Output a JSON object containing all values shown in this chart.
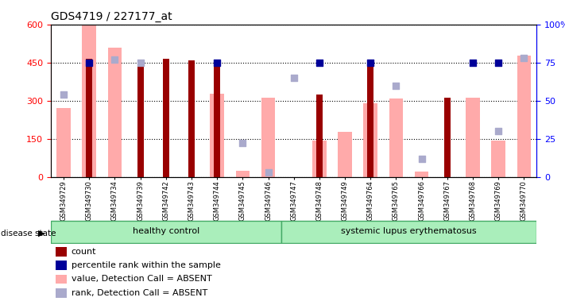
{
  "title": "GDS4719 / 227177_at",
  "samples": [
    "GSM349729",
    "GSM349730",
    "GSM349734",
    "GSM349739",
    "GSM349742",
    "GSM349743",
    "GSM349744",
    "GSM349745",
    "GSM349746",
    "GSM349747",
    "GSM349748",
    "GSM349749",
    "GSM349764",
    "GSM349765",
    "GSM349766",
    "GSM349767",
    "GSM349768",
    "GSM349769",
    "GSM349770"
  ],
  "count": [
    null,
    465,
    null,
    462,
    465,
    460,
    448,
    null,
    null,
    null,
    323,
    null,
    447,
    null,
    null,
    312,
    null,
    null,
    null
  ],
  "percentile_rank": [
    null,
    75,
    null,
    null,
    null,
    null,
    75,
    null,
    null,
    null,
    75,
    null,
    75,
    null,
    null,
    null,
    75,
    75,
    null
  ],
  "value_absent": [
    272,
    596,
    510,
    null,
    null,
    null,
    328,
    23,
    312,
    null,
    142,
    177,
    290,
    307,
    20,
    null,
    312,
    143,
    478
  ],
  "rank_absent": [
    54,
    null,
    77,
    75,
    null,
    null,
    null,
    22,
    3,
    65,
    null,
    null,
    null,
    60,
    12,
    null,
    null,
    30,
    78
  ],
  "ylim_left": [
    0,
    600
  ],
  "ylim_right": [
    0,
    100
  ],
  "yticks_left": [
    0,
    150,
    300,
    450,
    600
  ],
  "yticks_right": [
    0,
    25,
    50,
    75,
    100
  ],
  "bar_color_dark_red": "#990000",
  "bar_color_pink": "#FFAAAA",
  "dot_color_blue": "#000099",
  "dot_color_light_blue": "#AAAACC",
  "healthy_bg": "#AAEEBB",
  "lupus_bg": "#AAEEBB",
  "disease_label": "disease state",
  "healthy_label": "healthy control",
  "lupus_label": "systemic lupus erythematosus",
  "legend_items": [
    "count",
    "percentile rank within the sample",
    "value, Detection Call = ABSENT",
    "rank, Detection Call = ABSENT"
  ],
  "n_healthy": 9,
  "n_total": 19
}
